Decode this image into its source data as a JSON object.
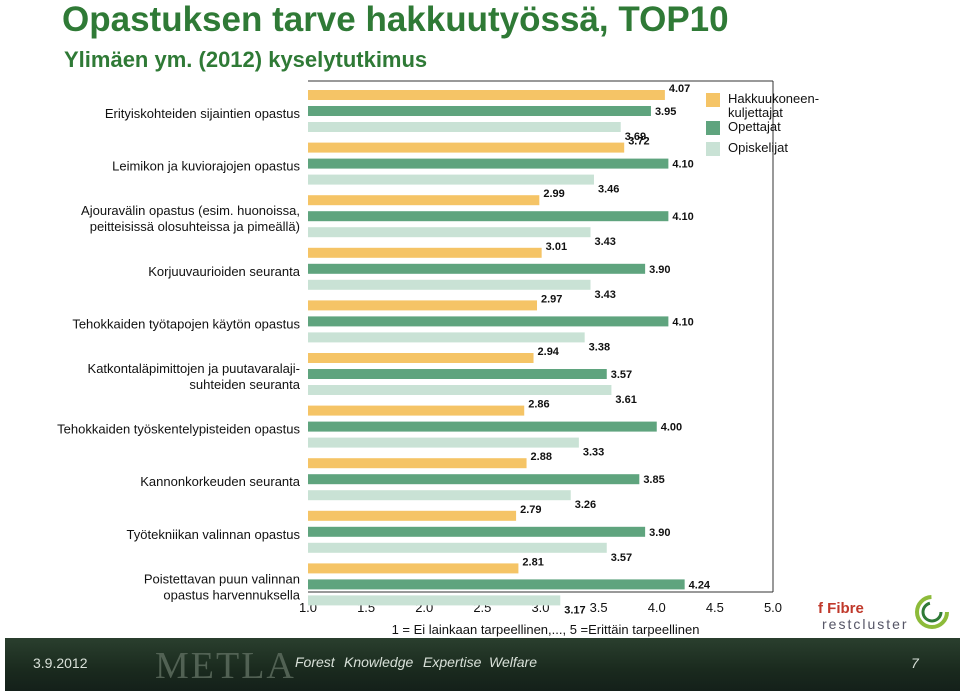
{
  "title": "Opastuksen tarve hakkuutyössä, TOP10",
  "subtitle": "Ylimäen ym. (2012) kyselytutkimus",
  "footer": {
    "date": "3.9.2012",
    "org": "METLA",
    "tags": [
      "Forest",
      "Knowledge",
      "Expertise",
      "Welfare"
    ],
    "page": "7"
  },
  "logos": {
    "fibre": "f Fibre",
    "cluster": "restcluster"
  },
  "colors": {
    "hakkuu": "#f5c466",
    "opettajat": "#5fa47e",
    "opiskelijat": "#c9e2d5",
    "title": "#2f7a36"
  },
  "chart_data": {
    "type": "bar",
    "orientation": "horizontal",
    "xlabel": "1 = Ei lainkaan tarpeellinen,..., 5 =Erittäin tarpeellinen",
    "xlim": [
      1.0,
      5.0
    ],
    "xticks": [
      "1.0",
      "1.5",
      "2.0",
      "2.5",
      "3.0",
      "3.5",
      "4.0",
      "4.5",
      "5.0"
    ],
    "legend_position": "top-right",
    "categories": [
      [
        "Erityiskohteiden sijaintien opastus"
      ],
      [
        "Leimikon ja kuviorajojen opastus"
      ],
      [
        "Ajouravälin opastus (esim. huonoissa,",
        "peitteisissä olosuhteissa ja pimeällä)"
      ],
      [
        "Korjuuvaurioiden seuranta"
      ],
      [
        "Tehokkaiden työtapojen käytön opastus"
      ],
      [
        "Katkontaläpimittojen ja puutavaralaji-",
        "suhteiden seuranta"
      ],
      [
        "Tehokkaiden työskentelypisteiden opastus"
      ],
      [
        "Kannonkorkeuden seuranta"
      ],
      [
        "Työtekniikan valinnan opastus"
      ],
      [
        "Poistettavan puun valinnan",
        "opastus harvennuksella"
      ]
    ],
    "series": [
      {
        "name": "Hakkuukoneen-kuljettajat",
        "legend_lines": [
          "Hakkuukoneen-",
          "kuljettajat"
        ],
        "color": "#f5c466",
        "values": [
          4.07,
          3.72,
          2.99,
          3.01,
          2.97,
          2.94,
          2.86,
          2.88,
          2.79,
          2.81
        ],
        "labels": [
          "4.07",
          "3.72",
          "2.99",
          "3.01",
          "2.97",
          "2.94",
          "2.86",
          "2.88",
          "2.79",
          "2.81"
        ]
      },
      {
        "name": "Opettajat",
        "legend_lines": [
          "Opettajat"
        ],
        "color": "#5fa47e",
        "values": [
          3.95,
          4.1,
          4.1,
          3.9,
          4.1,
          3.57,
          4.0,
          3.85,
          3.9,
          4.24
        ],
        "labels": [
          "3.95",
          "4.10",
          "4.10",
          "3.90",
          "4.10",
          "3.57",
          "4.00",
          "3.85",
          "3.90",
          "4.24"
        ]
      },
      {
        "name": "Opiskelijat",
        "legend_lines": [
          "Opiskelijat"
        ],
        "color": "#c9e2d5",
        "values": [
          3.69,
          3.46,
          3.43,
          3.43,
          3.38,
          3.61,
          3.33,
          3.26,
          3.57,
          3.17
        ],
        "labels": [
          "3.69",
          "3.46",
          "3.43",
          "3.43",
          "3.38",
          "3.61",
          "3.33",
          "3.26",
          "3.57",
          "3.17"
        ]
      }
    ]
  }
}
